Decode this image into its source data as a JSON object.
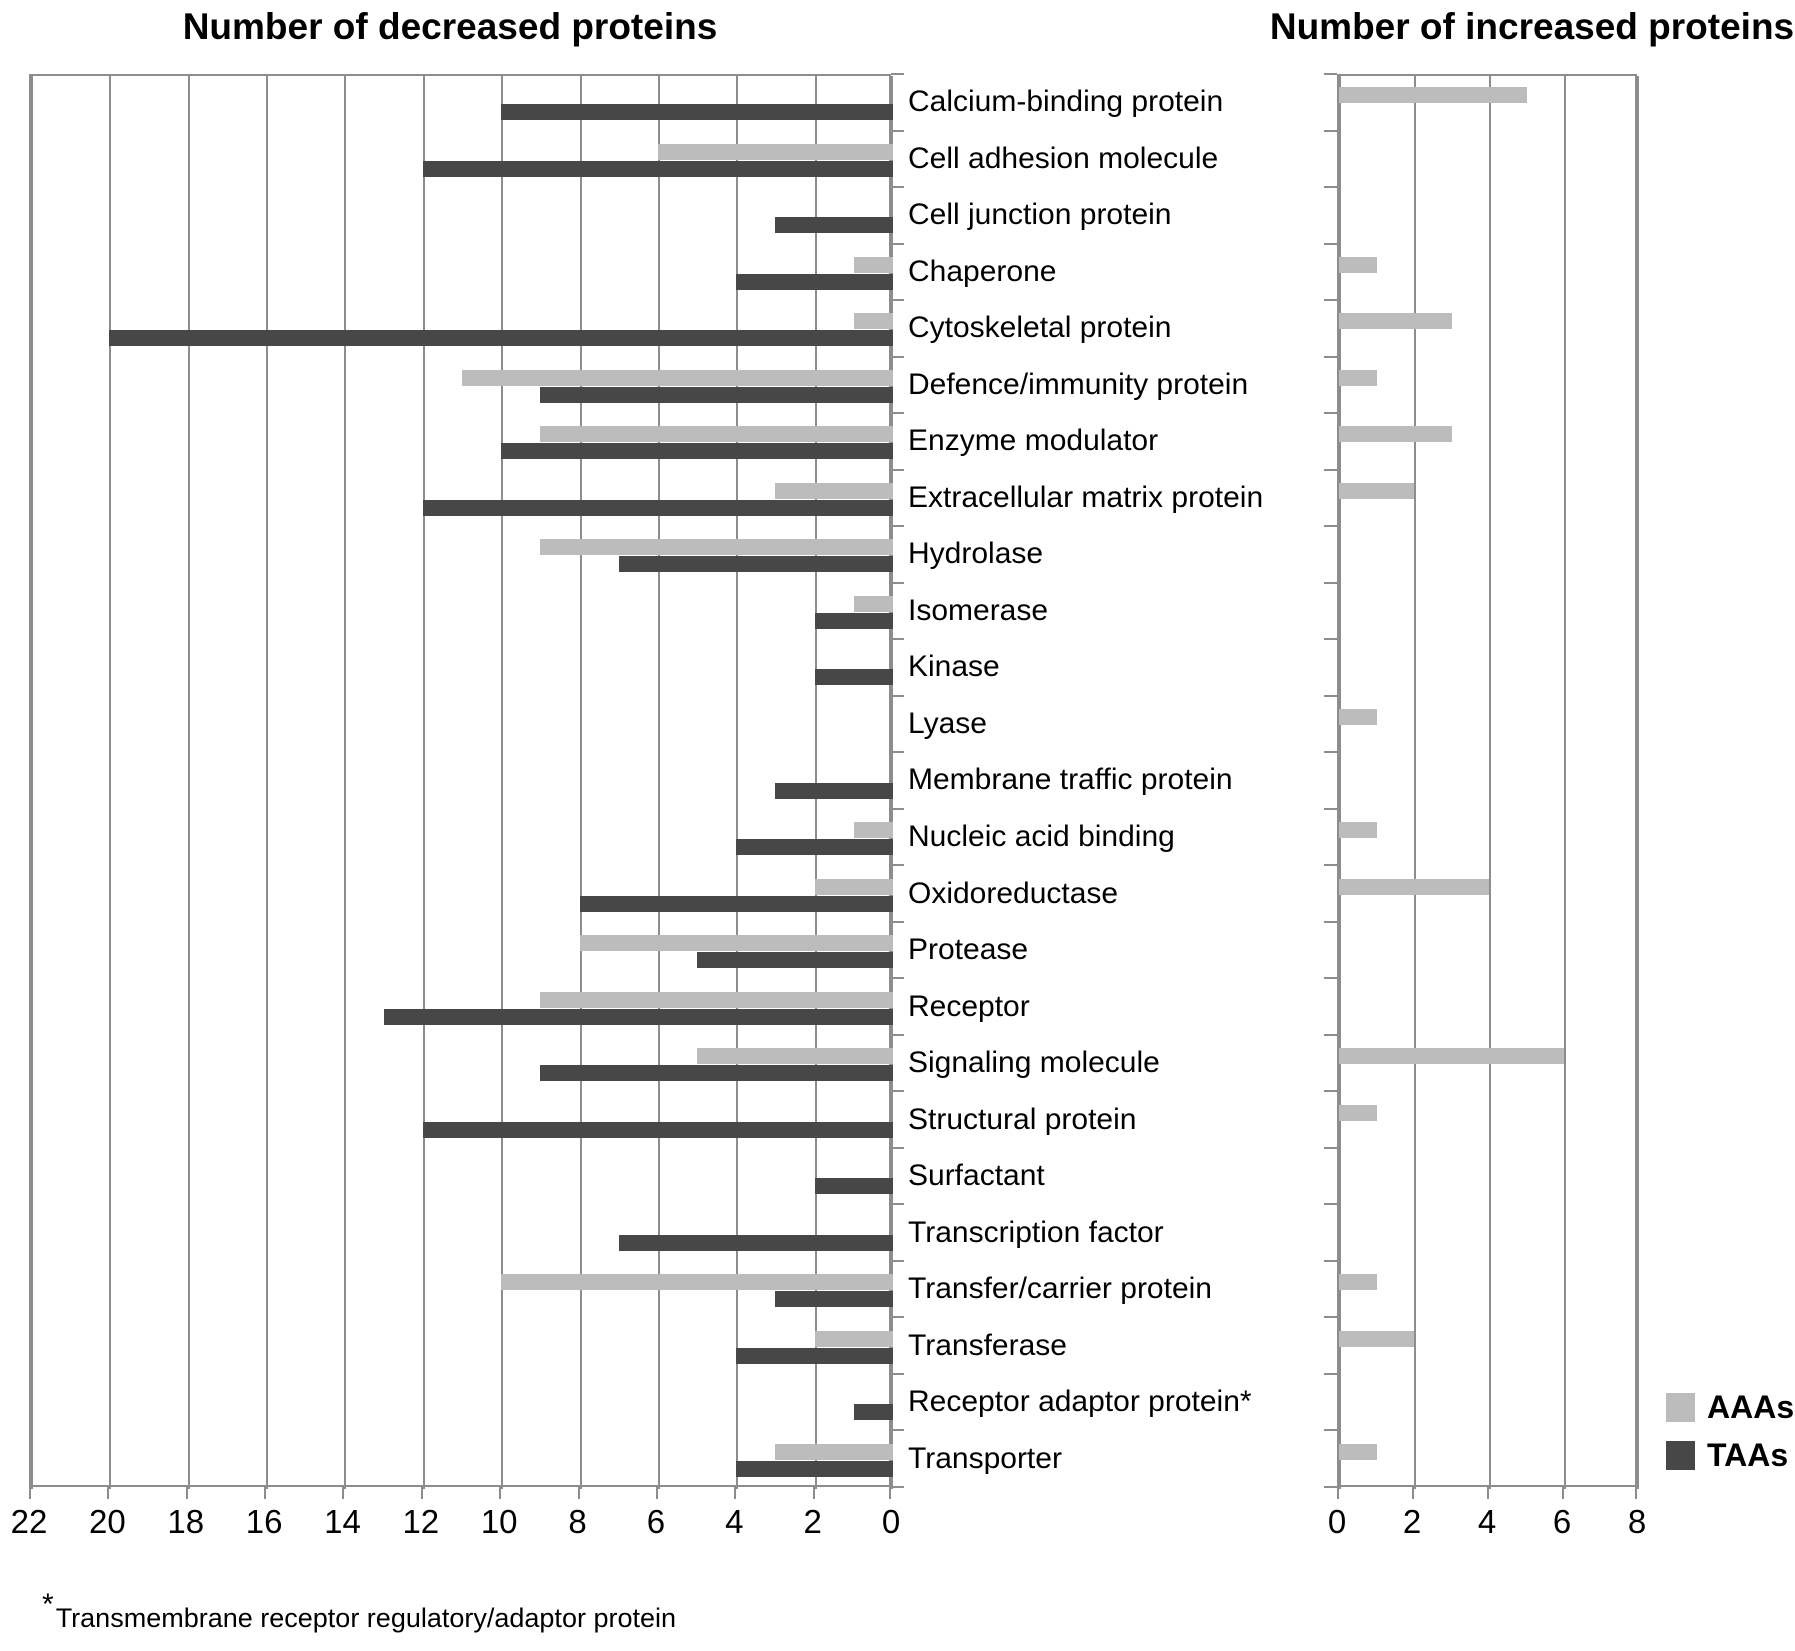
{
  "figure": {
    "footnote_star": "*",
    "footnote_text": "Transmembrane receptor regulatory/adaptor protein"
  },
  "legend": {
    "items": [
      {
        "label": "AAAs",
        "color": "#bcbcbc"
      },
      {
        "label": "TAAs",
        "color": "#474747"
      }
    ]
  },
  "colors": {
    "bar_light": "#bcbcbc",
    "bar_dark": "#474747",
    "grid": "#8d8d8d",
    "text": "#000000"
  },
  "chart_data": {
    "type": "bar",
    "orientation": "horizontal-mirrored",
    "grid": true,
    "legend_position": "bottom-right",
    "categories": [
      "Calcium-binding protein",
      "Cell adhesion molecule",
      "Cell junction protein",
      "Chaperone",
      "Cytoskeletal protein",
      "Defence/immunity protein",
      "Enzyme modulator",
      "Extracellular matrix protein",
      "Hydrolase",
      "Isomerase",
      "Kinase",
      "Lyase",
      "Membrane traffic protein",
      "Nucleic acid binding",
      "Oxidoreductase",
      "Protease",
      "Receptor",
      "Signaling molecule",
      "Structural protein",
      "Surfactant",
      "Transcription factor",
      "Transfer/carrier protein",
      "Transferase",
      "Receptor adaptor protein*",
      "Transporter"
    ],
    "decreased": {
      "title": "Number of decreased proteins",
      "xlabel": "",
      "xlim": [
        22,
        0
      ],
      "axis_reversed": true,
      "ticks": [
        22,
        20,
        18,
        16,
        14,
        12,
        10,
        8,
        6,
        4,
        2,
        0
      ],
      "series": [
        {
          "name": "AAAs",
          "values": [
            0,
            6,
            0,
            1,
            1,
            11,
            9,
            3,
            9,
            1,
            0,
            0,
            0,
            1,
            2,
            8,
            9,
            5,
            0,
            0,
            0,
            10,
            2,
            0,
            3
          ]
        },
        {
          "name": "TAAs",
          "values": [
            10,
            12,
            3,
            4,
            20,
            9,
            10,
            12,
            7,
            2,
            2,
            0,
            3,
            4,
            8,
            5,
            13,
            9,
            12,
            2,
            7,
            3,
            4,
            1,
            4
          ]
        }
      ]
    },
    "increased": {
      "title": "Number of increased proteins",
      "xlabel": "",
      "xlim": [
        0,
        8
      ],
      "axis_reversed": false,
      "ticks": [
        0,
        2,
        4,
        6,
        8
      ],
      "series": [
        {
          "name": "AAAs",
          "values": [
            5,
            0,
            0,
            1,
            3,
            1,
            3,
            2,
            0,
            0,
            0,
            1,
            0,
            1,
            4,
            0,
            0,
            6,
            1,
            0,
            0,
            1,
            2,
            0,
            1
          ]
        },
        {
          "name": "TAAs",
          "values": [
            0,
            0,
            0,
            0,
            0,
            0,
            0,
            0,
            0,
            0,
            0,
            0,
            0,
            0,
            0,
            0,
            0,
            0,
            0,
            0,
            0,
            0,
            0,
            0,
            0
          ]
        }
      ]
    }
  }
}
